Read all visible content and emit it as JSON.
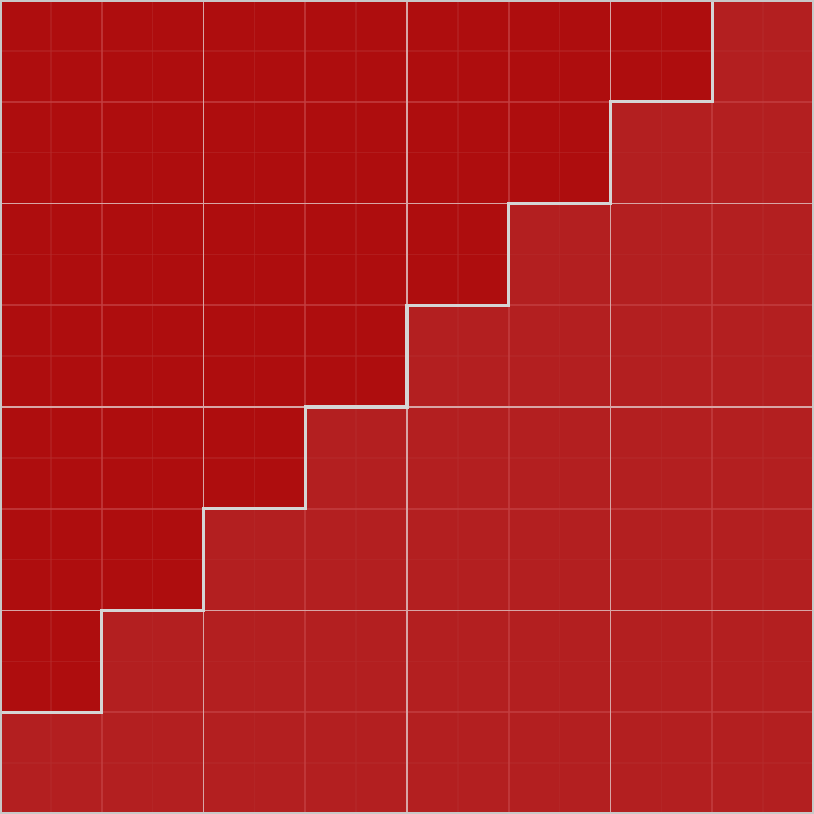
{
  "board": {
    "rows": 8,
    "columns": 8,
    "subdivisions": 2,
    "colors": {
      "upper_region": "#ae0d0e",
      "lower_region": "#b31f20",
      "major_grid": "#d8a5a5",
      "minor_grid": "#c33f40",
      "fine_grid": "#b52b2c",
      "frame": "#c8c8c8",
      "boundary": "#d5d5d5"
    },
    "boundary_cells_per_row": [
      7,
      6,
      5,
      4,
      3,
      2,
      1,
      0
    ]
  }
}
